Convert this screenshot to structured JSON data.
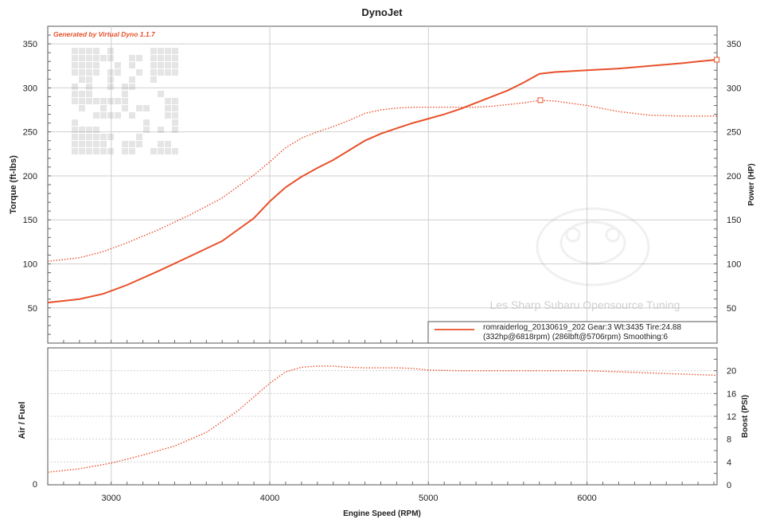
{
  "title": "DynoJet",
  "generated_by": "Generated by Virtual Dyno 1.1.7",
  "watermark_text": "Les Sharp Subaru Opensource Tuning",
  "colors": {
    "series": "#e8502a",
    "grid": "#d0d0d0",
    "frame": "#333333",
    "text": "#222222"
  },
  "legend": {
    "line1": "romraiderlog_20130619_202 Gear:3 Wt:3435 Tire:24.88",
    "line2": "(332hp@6818rpm) (286lbft@5706rpm) Smoothing:6"
  },
  "chart_data": [
    {
      "type": "line",
      "ylabel": "Torque (ft-lbs)",
      "ylabel_right": "Power (HP)",
      "xlim": [
        2600,
        6820
      ],
      "ylim": [
        10,
        370
      ],
      "yticks": [
        50,
        100,
        150,
        200,
        250,
        300,
        350
      ],
      "grid": true,
      "legend_position": "bottom-right",
      "series": [
        {
          "style": "solid",
          "x": [
            2600,
            2800,
            2950,
            3100,
            3300,
            3500,
            3700,
            3900,
            4000,
            4100,
            4200,
            4300,
            4400,
            4500,
            4600,
            4700,
            4800,
            4900,
            5000,
            5100,
            5200,
            5300,
            5400,
            5500,
            5600,
            5700,
            5800,
            6000,
            6200,
            6400,
            6600,
            6700,
            6818
          ],
          "values": [
            56,
            60,
            66,
            76,
            92,
            109,
            126,
            152,
            171,
            187,
            199,
            209,
            218,
            229,
            240,
            248,
            254,
            260,
            265,
            270,
            276,
            283,
            290,
            297,
            306,
            316,
            318,
            320,
            322,
            325,
            328,
            330,
            332
          ]
        },
        {
          "style": "dotted",
          "x": [
            2600,
            2800,
            2950,
            3100,
            3300,
            3500,
            3700,
            3900,
            4000,
            4100,
            4200,
            4300,
            4400,
            4500,
            4600,
            4700,
            4800,
            4900,
            5000,
            5100,
            5200,
            5300,
            5400,
            5500,
            5600,
            5706,
            5800,
            6000,
            6200,
            6400,
            6600,
            6818
          ],
          "values": [
            103,
            107,
            114,
            124,
            139,
            156,
            175,
            201,
            216,
            232,
            243,
            250,
            256,
            263,
            271,
            275,
            277,
            278,
            278,
            278,
            278,
            278,
            279,
            281,
            283,
            286,
            285,
            280,
            273,
            269,
            268,
            268
          ]
        }
      ]
    },
    {
      "type": "line",
      "ylabel": "Air / Fuel",
      "ylabel_right": "Boost (PSI)",
      "xlabel": "Engine Speed (RPM)",
      "xlim": [
        2600,
        6820
      ],
      "xticks": [
        3000,
        4000,
        5000,
        6000
      ],
      "ylim_left_ticks": [
        0
      ],
      "ylim": [
        0,
        24
      ],
      "yticks": [
        0,
        4,
        8,
        12,
        16,
        20
      ],
      "grid": true,
      "series": [
        {
          "style": "dotted",
          "x": [
            2600,
            2800,
            3000,
            3200,
            3400,
            3600,
            3800,
            4000,
            4100,
            4200,
            4300,
            4400,
            4500,
            4600,
            4700,
            4800,
            4900,
            5000,
            5200,
            5400,
            5600,
            5800,
            6000,
            6200,
            6400,
            6600,
            6818
          ],
          "values": [
            2.2,
            2.8,
            3.8,
            5.2,
            6.8,
            9.2,
            13.0,
            17.8,
            19.8,
            20.6,
            20.8,
            20.8,
            20.6,
            20.5,
            20.5,
            20.5,
            20.4,
            20.1,
            20.0,
            20.0,
            20.0,
            20.0,
            20.0,
            19.8,
            19.6,
            19.4,
            19.2
          ]
        }
      ]
    }
  ]
}
